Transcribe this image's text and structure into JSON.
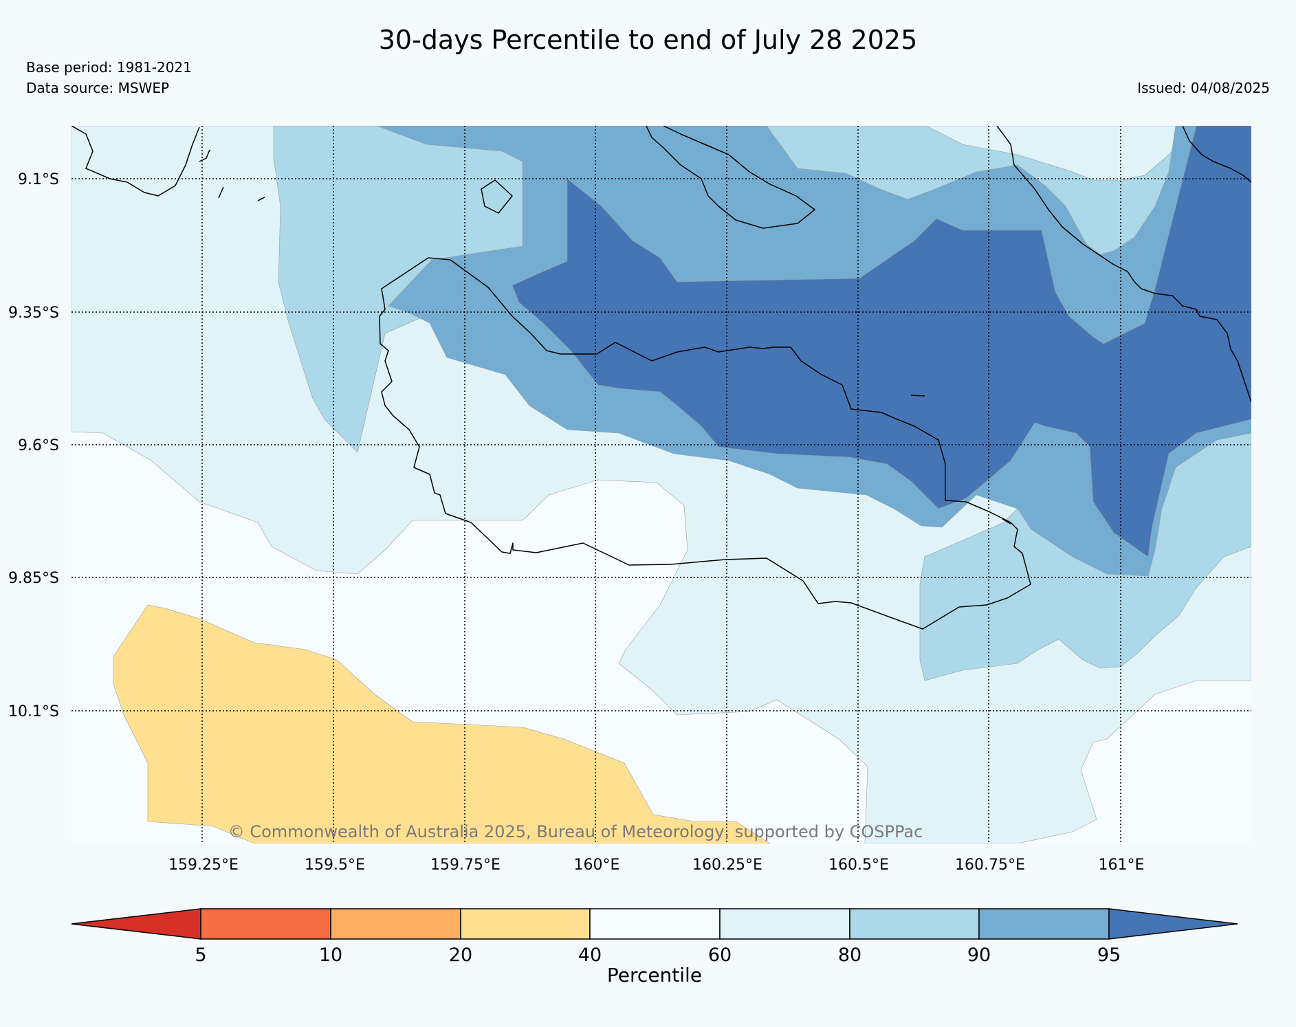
{
  "title": "30-days Percentile to end of July 28 2025",
  "base_period": "Base period: 1981-2021",
  "data_source": "Data source: MSWEP",
  "issued": "Issued: 04/08/2025",
  "copyright": "© Commonwealth of Australia 2025, Bureau of Meteorology, supported by COSPPac",
  "map": {
    "lon_ticks": [
      "159.25°E",
      "159.5°E",
      "159.75°E",
      "160°E",
      "160.25°E",
      "160.5°E",
      "160.75°E",
      "161°E"
    ],
    "lat_ticks": [
      "9.1°S",
      "9.35°S",
      "9.6°S",
      "9.85°S",
      "10.1°S"
    ]
  },
  "legend": {
    "label": "Percentile",
    "ticks": [
      "5",
      "10",
      "20",
      "40",
      "60",
      "80",
      "90",
      "95"
    ],
    "colors": {
      "below_5": "#d73027",
      "5_10": "#f46d43",
      "10_20": "#fdae61",
      "20_40": "#fee090",
      "40_60": "#f7fcff",
      "60_80": "#e0f3f8",
      "80_90": "#abd9e9",
      "90_95": "#74add1",
      "above_95": "#4575b4"
    }
  }
}
